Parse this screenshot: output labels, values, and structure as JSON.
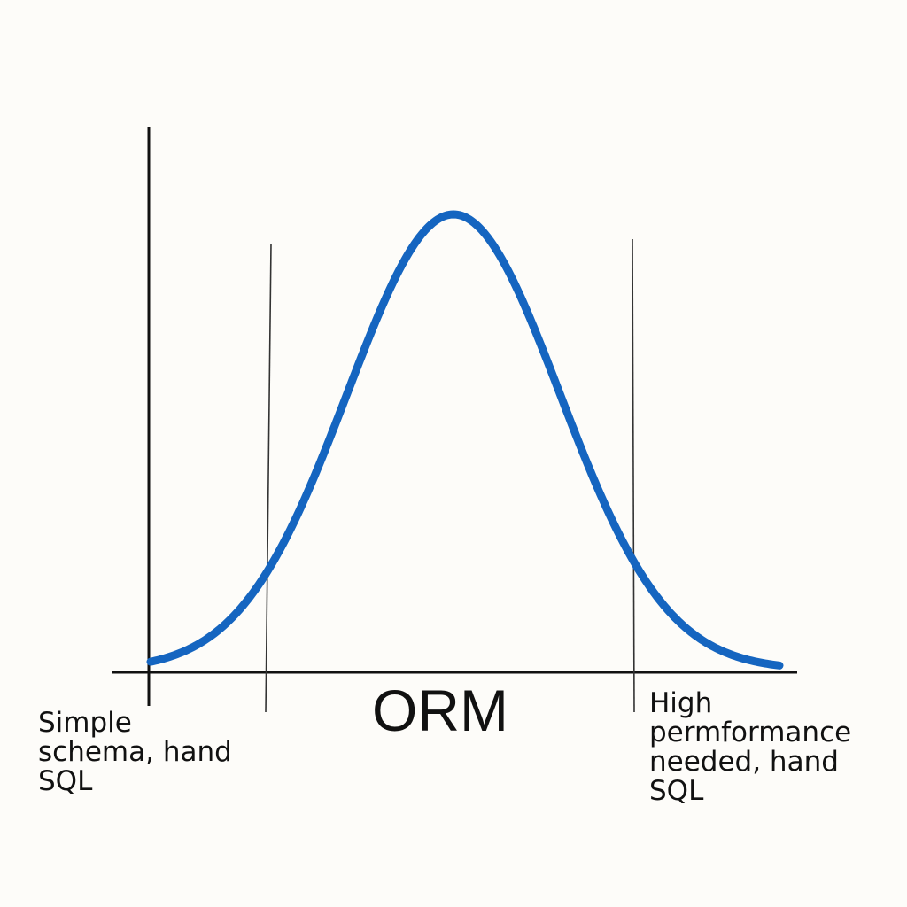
{
  "labels": {
    "left": "Simple\nschema, hand\nSQL",
    "center": "ORM",
    "right": "High\npermformance\nneeded, hand\nSQL"
  },
  "colors": {
    "background": "#fdfcf9",
    "curve": "#1565c0",
    "axis": "#111111",
    "divider": "#333333"
  }
}
